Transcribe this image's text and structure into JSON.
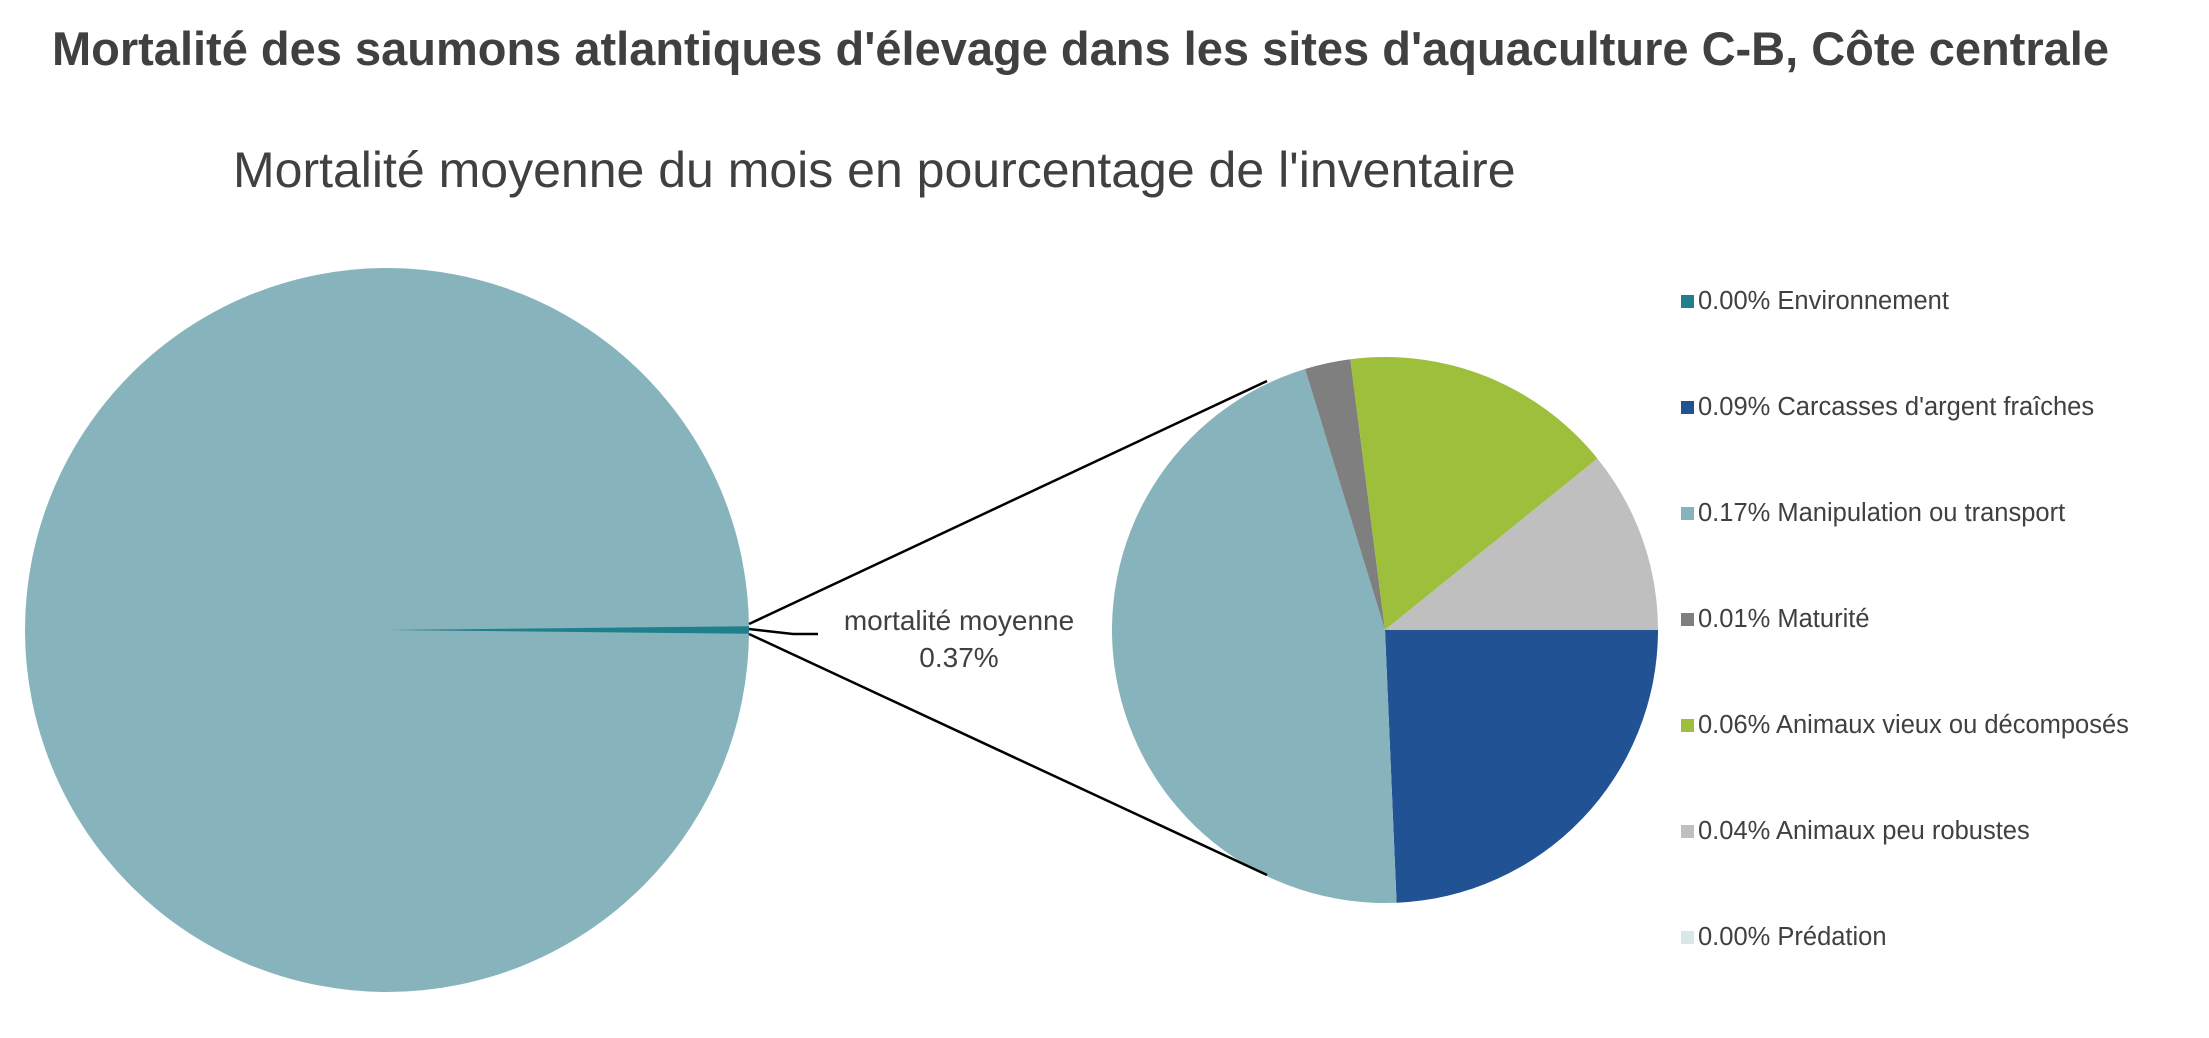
{
  "chart_data": {
    "type": "pie",
    "subtype": "pie-of-pie",
    "title": "Mortalité des saumons atlantiques d'élevage dans les sites d'aquaculture C-B, Côte centrale",
    "subtitle": "Mortalité moyenne du mois en pourcentage de l'inventaire",
    "center_label": {
      "name": "mortalité moyenne",
      "value": "0.37%"
    },
    "secondary_pie": [
      {
        "label": "0.00% Environnement",
        "value": 0.0,
        "color": "#1f7f8a"
      },
      {
        "label": "0.09% Carcasses d'argent fraîches",
        "value": 0.09,
        "color": "#215294"
      },
      {
        "label": "0.17% Manipulation ou transport",
        "value": 0.17,
        "color": "#87b4bc"
      },
      {
        "label": "0.01% Maturité",
        "value": 0.01,
        "color": "#7f7f7f"
      },
      {
        "label": "0.06% Animaux vieux ou décomposés",
        "value": 0.06,
        "color": "#9ebf3b"
      },
      {
        "label": "0.04% Animaux peu robustes",
        "value": 0.04,
        "color": "#bfbfbf"
      },
      {
        "label": "0.00% Prédation",
        "value": 0.0,
        "color": "#d7e8e6"
      }
    ],
    "legend_position": "right",
    "main_pie_color": "#87b4bc",
    "highlight_slice_color": "#1f7f8a"
  }
}
